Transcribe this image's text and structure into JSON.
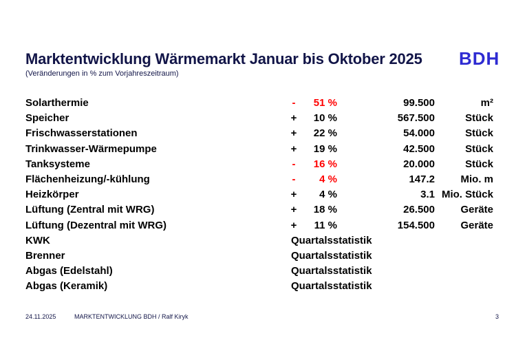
{
  "title": "Marktentwicklung Wärmemarkt Januar bis Oktober 2025",
  "subtitle": "(Veränderungen in % zum Vorjahreszeitraum)",
  "logo": "BDH",
  "colors": {
    "title": "#121548",
    "logo": "#2e2bd2",
    "negative": "#ff0000"
  },
  "rows": [
    {
      "name": "Solarthermie",
      "sign": "-",
      "percent": "51 %",
      "value": "99.500",
      "unit": "m²",
      "negative": true
    },
    {
      "name": "Speicher",
      "sign": "+",
      "percent": "10 %",
      "value": "567.500",
      "unit": "Stück",
      "negative": false
    },
    {
      "name": "Frischwasserstationen",
      "sign": "+",
      "percent": "22 %",
      "value": "54.000",
      "unit": "Stück",
      "negative": false
    },
    {
      "name": "Trinkwasser-Wärmepumpe",
      "sign": "+",
      "percent": "19 %",
      "value": "42.500",
      "unit": "Stück",
      "negative": false
    },
    {
      "name": "Tanksysteme",
      "sign": "-",
      "percent": "16 %",
      "value": "20.000",
      "unit": "Stück",
      "negative": true
    },
    {
      "name": "Flächenheizung/-kühlung",
      "sign": "-",
      "percent": "4 %",
      "value": "147.2",
      "unit": "Mio. m",
      "negative": true
    },
    {
      "name": "Heizkörper",
      "sign": "+",
      "percent": "4 %",
      "value": "3.1",
      "unit": "Mio. Stück",
      "negative": false
    },
    {
      "name": "Lüftung (Zentral mit WRG)",
      "sign": "+",
      "percent": "18 %",
      "value": "26.500",
      "unit": "Geräte",
      "negative": false
    },
    {
      "name": "Lüftung (Dezentral mit WRG)",
      "sign": "+",
      "percent": "11 %",
      "value": "154.500",
      "unit": "Geräte",
      "negative": false
    }
  ],
  "quarterly_rows": [
    {
      "name": "KWK",
      "note": "Quartalsstatistik"
    },
    {
      "name": "Brenner",
      "note": "Quartalsstatistik"
    },
    {
      "name": "Abgas (Edelstahl)",
      "note": "Quartalsstatistik"
    },
    {
      "name": "Abgas (Keramik)",
      "note": "Quartalsstatistik"
    }
  ],
  "footer": {
    "date": "24.11.2025",
    "text": "MARKTENTWICKLUNG BDH / Ralf Kiryk",
    "page": "3"
  }
}
